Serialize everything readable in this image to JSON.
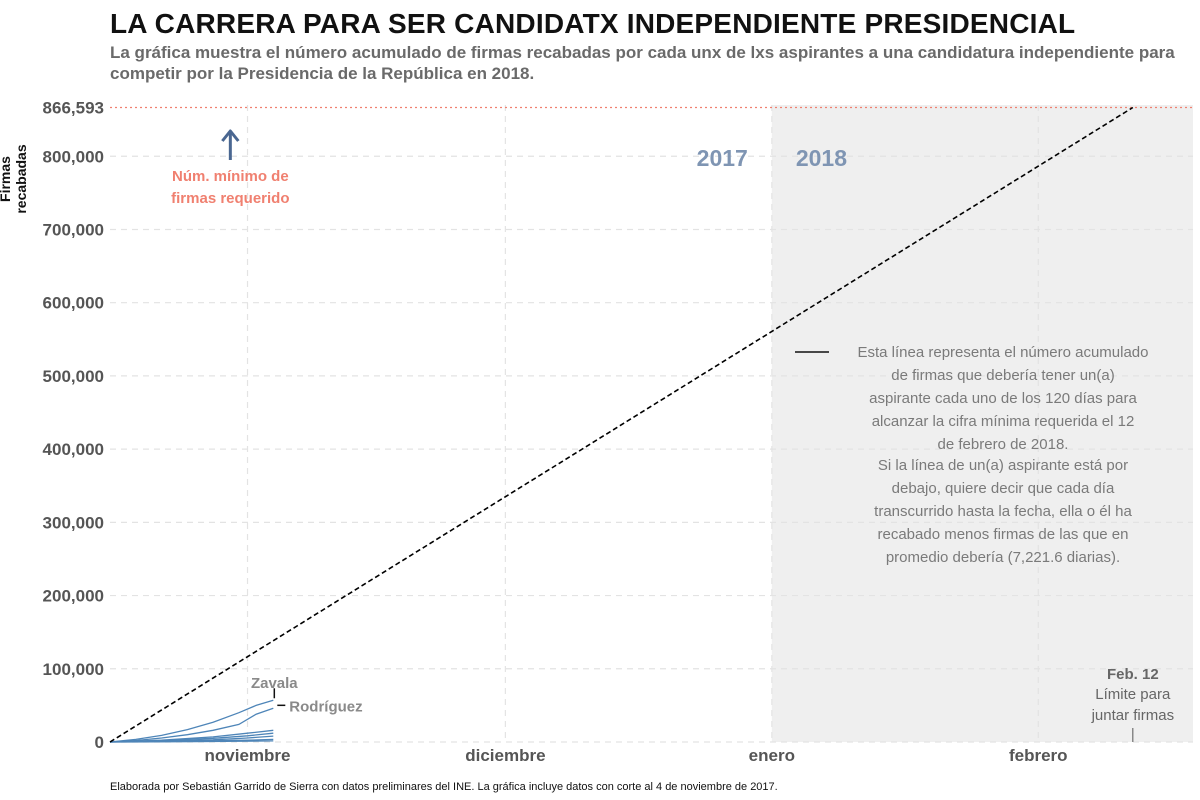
{
  "title": "LA CARRERA PARA SER CANDIDATX INDEPENDIENTE PRESIDENCIAL",
  "subtitle": "La gráfica muestra el número acumulado de firmas recabadas por cada unx de lxs aspirantes a una candidatura independiente para competir por la Presidencia de la República en 2018.",
  "caption": "Elaborada por Sebastián Garrido de Sierra con datos preliminares  del INE. La gráfica incluye datos con corte al 4 de noviembre de 2017.",
  "colors": {
    "series": "#4e85b8",
    "threshold": "#f08070",
    "year_label": "#7f95b3",
    "arrow": "#4a6791",
    "shade": "#efefef",
    "grid": "#e3e3e3",
    "annotation": "#7a7a7a"
  },
  "chart_data": {
    "type": "line",
    "ylabel": "Firmas recabadas",
    "xlabel": "",
    "x_range": [
      "2017-10-16",
      "2018-02-19"
    ],
    "ylim": [
      0,
      866593
    ],
    "y_ticks": [
      {
        "value": 0,
        "label": "0"
      },
      {
        "value": 100000,
        "label": "100,000"
      },
      {
        "value": 200000,
        "label": "200,000"
      },
      {
        "value": 300000,
        "label": "300,000"
      },
      {
        "value": 400000,
        "label": "400,000"
      },
      {
        "value": 500000,
        "label": "500,000"
      },
      {
        "value": 600000,
        "label": "600,000"
      },
      {
        "value": 700000,
        "label": "700,000"
      },
      {
        "value": 800000,
        "label": "800,000"
      },
      {
        "value": 866593,
        "label": "866,593"
      }
    ],
    "x_ticks": [
      {
        "date": "2017-11-01",
        "label": "noviembre"
      },
      {
        "date": "2017-12-01",
        "label": "diciembre"
      },
      {
        "date": "2018-01-01",
        "label": "enero"
      },
      {
        "date": "2018-02-01",
        "label": "febrero"
      }
    ],
    "shaded_region": {
      "from": "2018-01-01",
      "to": "2018-02-19"
    },
    "year_labels": {
      "left": "2017",
      "right": "2018",
      "at": "2018-01-01"
    },
    "threshold": {
      "value": 866593,
      "label": "Núm. mínimo de firmas requerido",
      "arrow_at": "2017-10-30"
    },
    "reference_line": {
      "points": [
        {
          "x": "2017-10-16",
          "y": 0
        },
        {
          "x": "2018-02-12",
          "y": 866593
        }
      ],
      "label": "Esta línea representa el número acumulado de firmas que debería tener un(a) aspirante cada uno de los 120 días para alcanzar la cifra mínima requerida el 12 de febrero de 2018.",
      "label2": "Si la línea de un(a) aspirante está por debajo, quiere decir que cada día transcurrido hasta la fecha, ella o él ha recabado menos firmas de las que en promedio debería (7,221.6 diarias)."
    },
    "deadline": {
      "date": "2018-02-12",
      "title": "Feb. 12",
      "label": "Límite para juntar firmas"
    },
    "series": [
      {
        "name": "Zavala",
        "points": [
          {
            "x": "2017-10-16",
            "y": 0
          },
          {
            "x": "2017-10-19",
            "y": 3500
          },
          {
            "x": "2017-10-22",
            "y": 9000
          },
          {
            "x": "2017-10-25",
            "y": 17000
          },
          {
            "x": "2017-10-28",
            "y": 27000
          },
          {
            "x": "2017-10-31",
            "y": 40000
          },
          {
            "x": "2017-11-02",
            "y": 50000
          },
          {
            "x": "2017-11-04",
            "y": 57000
          }
        ]
      },
      {
        "name": "Rodríguez",
        "points": [
          {
            "x": "2017-10-16",
            "y": 0
          },
          {
            "x": "2017-10-19",
            "y": 2000
          },
          {
            "x": "2017-10-22",
            "y": 5500
          },
          {
            "x": "2017-10-25",
            "y": 10000
          },
          {
            "x": "2017-10-28",
            "y": 16000
          },
          {
            "x": "2017-10-31",
            "y": 24000
          },
          {
            "x": "2017-11-02",
            "y": 38000
          },
          {
            "x": "2017-11-04",
            "y": 46000
          }
        ]
      },
      {
        "points": [
          {
            "x": "2017-10-16",
            "y": 0
          },
          {
            "x": "2017-10-22",
            "y": 2500
          },
          {
            "x": "2017-10-28",
            "y": 7000
          },
          {
            "x": "2017-11-01",
            "y": 12000
          },
          {
            "x": "2017-11-04",
            "y": 16000
          }
        ]
      },
      {
        "points": [
          {
            "x": "2017-10-16",
            "y": 0
          },
          {
            "x": "2017-10-22",
            "y": 2000
          },
          {
            "x": "2017-10-28",
            "y": 5000
          },
          {
            "x": "2017-11-01",
            "y": 8500
          },
          {
            "x": "2017-11-04",
            "y": 12000
          }
        ]
      },
      {
        "points": [
          {
            "x": "2017-10-16",
            "y": 0
          },
          {
            "x": "2017-10-22",
            "y": 1200
          },
          {
            "x": "2017-10-28",
            "y": 3000
          },
          {
            "x": "2017-11-01",
            "y": 5500
          },
          {
            "x": "2017-11-04",
            "y": 8000
          }
        ]
      },
      {
        "points": [
          {
            "x": "2017-10-16",
            "y": 0
          },
          {
            "x": "2017-10-24",
            "y": 800
          },
          {
            "x": "2017-11-01",
            "y": 2500
          },
          {
            "x": "2017-11-04",
            "y": 3500
          }
        ]
      },
      {
        "points": [
          {
            "x": "2017-10-16",
            "y": 0
          },
          {
            "x": "2017-10-26",
            "y": 500
          },
          {
            "x": "2017-11-04",
            "y": 1500
          }
        ]
      }
    ]
  }
}
